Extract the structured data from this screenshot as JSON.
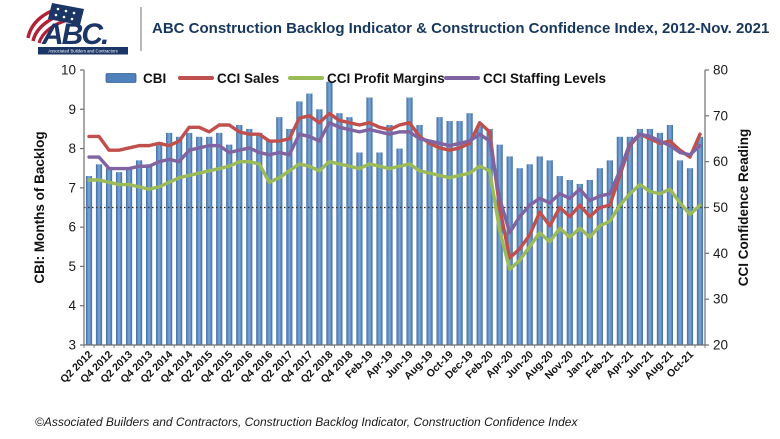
{
  "header": {
    "title": "ABC Construction Backlog Indicator & Construction Confidence Index, 2012-Nov. 2021"
  },
  "logo": {
    "abbr": "ABC.",
    "banner": "Associated Builders and Contractors"
  },
  "footer": {
    "text": "©Associated Builders and Contractors, Construction Backlog Indicator, Construction Confidence Index"
  },
  "chart_data": {
    "type": "combo",
    "subtype": "bars-with-lines",
    "title": "ABC Construction Backlog Indicator & Construction Confidence Index, 2012-Nov. 2021",
    "x_labels": [
      "Q2 2012",
      "Q4 2012",
      "Q2 2013",
      "Q4 2013",
      "Q2 2014",
      "Q4 2014",
      "Q2 2015",
      "Q4 2015",
      "Q2 2016",
      "Q4 2016",
      "Q2 2017",
      "Q4 2017",
      "Q2 2018",
      "Q4 2018",
      "Feb-19",
      "Apr-19",
      "Jun-19",
      "Aug-19",
      "Oct-19",
      "Dec-19",
      "Feb-20",
      "Apr-20",
      "Jun-20",
      "Aug-20",
      "Nov-20",
      "Jan-21",
      "Feb-21",
      "Apr-21",
      "Jun-21",
      "Aug-21",
      "Oct-21"
    ],
    "label_every_n_bars": 2,
    "axes": {
      "left": {
        "title": "CBI: Months of Backlog",
        "min": 3,
        "max": 10,
        "ticks": [
          10,
          9,
          8,
          7,
          6,
          5,
          4,
          3
        ]
      },
      "right": {
        "title": "CCI Confidence Reading",
        "min": 20,
        "max": 80,
        "ticks": [
          80,
          70,
          60,
          50,
          40,
          30,
          20
        ]
      }
    },
    "threshold_line": {
      "value": 50,
      "axis": "right",
      "style": "dotted",
      "color": "#333333"
    },
    "grid": "off",
    "legend": {
      "position": "top-inside",
      "items": [
        "CBI",
        "CCI Sales",
        "CCI Profit Margins",
        "CCI Staffing Levels"
      ]
    },
    "bars": {
      "name": "CBI",
      "axis": "left",
      "color": "#4F81BD",
      "values": [
        7.3,
        7.6,
        7.5,
        7.4,
        7.5,
        7.7,
        7.6,
        8.1,
        8.4,
        8.3,
        8.4,
        8.3,
        8.3,
        8.4,
        8.1,
        8.6,
        8.5,
        8.4,
        8.2,
        8.8,
        8.5,
        9.2,
        9.4,
        9.0,
        9.7,
        8.9,
        8.8,
        7.9,
        9.3,
        7.9,
        8.6,
        8.0,
        9.3,
        8.6,
        8.2,
        8.8,
        8.7,
        8.7,
        8.9,
        8.6,
        8.5,
        8.1,
        7.8,
        7.5,
        7.6,
        7.8,
        7.7,
        7.3,
        7.2,
        7.1,
        7.2,
        7.5,
        7.7,
        8.3,
        8.3,
        8.5,
        8.5,
        8.4,
        8.6,
        7.7,
        7.5,
        8.3
      ]
    },
    "line_series": [
      {
        "name": "CCI Sales",
        "axis": "right",
        "color": "#C0504D",
        "values": [
          65.5,
          65.5,
          62.5,
          62.5,
          63,
          63.5,
          63.5,
          64,
          63.5,
          64.5,
          67.5,
          67.5,
          66.5,
          68,
          68,
          66.5,
          66,
          66,
          64.5,
          64.5,
          65,
          69.5,
          70,
          68.5,
          70.5,
          69,
          68.5,
          68,
          68.5,
          67.5,
          67,
          68,
          68.5,
          65.5,
          64,
          63,
          62.5,
          63,
          64,
          68.5,
          66.5,
          50,
          39,
          41,
          44,
          49,
          46,
          50,
          48,
          50.5,
          48,
          50,
          50.5,
          57,
          63.5,
          66,
          65,
          64,
          64.5,
          62.5,
          61,
          66
        ]
      },
      {
        "name": "CCI Profit Margins",
        "axis": "right",
        "color": "#9BBB59",
        "values": [
          56,
          56,
          55.5,
          55,
          55,
          54.5,
          54,
          54.5,
          55.5,
          56.5,
          57,
          57.5,
          58,
          58.5,
          59,
          60,
          60,
          59.5,
          55.5,
          56.5,
          58,
          59.5,
          59,
          58,
          60,
          59.5,
          59,
          58.5,
          59.5,
          59,
          58.5,
          59,
          59.5,
          58,
          57.5,
          57,
          56.5,
          57,
          57.5,
          59,
          58,
          45,
          36.5,
          38.5,
          41.5,
          44.5,
          42.5,
          45.5,
          43.5,
          45.5,
          43.5,
          46,
          47,
          50.5,
          53,
          55,
          53.5,
          53,
          54,
          51,
          48.5,
          50.5
        ]
      },
      {
        "name": "CCI Staffing Levels",
        "axis": "right",
        "color": "#8064A2",
        "values": [
          61,
          61,
          58.5,
          58.5,
          58.5,
          59,
          59,
          60,
          60.5,
          60,
          62.5,
          63,
          63.5,
          63.5,
          62,
          62.5,
          63,
          62,
          61.5,
          62,
          61.5,
          66,
          65.5,
          64.5,
          68.5,
          67.5,
          67,
          66.5,
          67,
          66.5,
          66,
          66.5,
          66.5,
          65,
          64.5,
          64,
          63.5,
          64,
          64.5,
          66,
          64.5,
          52,
          44.5,
          48,
          50.5,
          52,
          51,
          53,
          52,
          54,
          51.5,
          52.5,
          53,
          58,
          64,
          66,
          65.5,
          64.5,
          63.5,
          62,
          61.5,
          63.5
        ]
      }
    ]
  }
}
